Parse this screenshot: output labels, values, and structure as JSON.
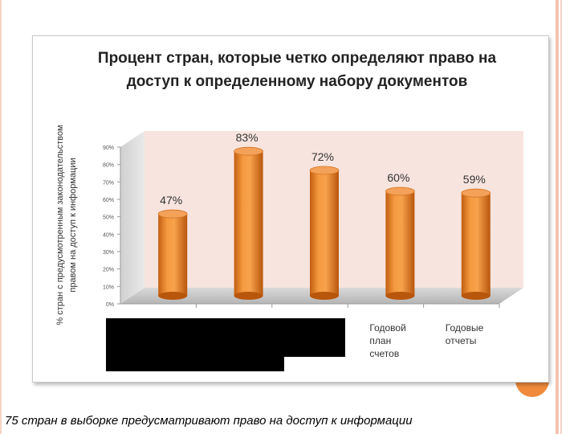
{
  "chart_data": {
    "type": "bar",
    "title": "Процент стран, которые четко определяют право на доступ к определенному набору документов",
    "ylabel": "% стран с предусмотренным законодательством правом на доступ к информации",
    "categories": [
      "",
      "",
      "",
      "Годовой план счетов",
      "Годовые отчеты"
    ],
    "values": [
      47,
      83,
      72,
      60,
      59
    ],
    "data_labels": [
      "47%",
      "83%",
      "72%",
      "60%",
      "59%"
    ],
    "ylim": [
      0,
      90
    ],
    "yticks": [
      "0%",
      "10%",
      "20%",
      "30%",
      "40%",
      "50%",
      "60%",
      "70%",
      "80%",
      "90%"
    ],
    "grid": false,
    "bar_color": "#f28a2a",
    "bar_style": "3d-cylinder",
    "wall_color": "#f7e4de",
    "floor_color": "#c8c8c8"
  },
  "category_lines": [
    [
      "",
      "",
      ""
    ],
    [
      "",
      "",
      ""
    ],
    [
      "",
      "",
      ""
    ],
    [
      "Годовой",
      "план",
      "счетов"
    ],
    [
      "Годовые",
      "отчеты",
      ""
    ]
  ],
  "ylabel_lines": [
    "% стран с предусмотренным законодательством",
    "правом на доступ к информации"
  ],
  "footer": {
    "caption": "75 стран в выборке предусматривают право на доступ к информации"
  },
  "colors": {
    "accent": "#f08a3c",
    "border": "#f3c3ad"
  }
}
